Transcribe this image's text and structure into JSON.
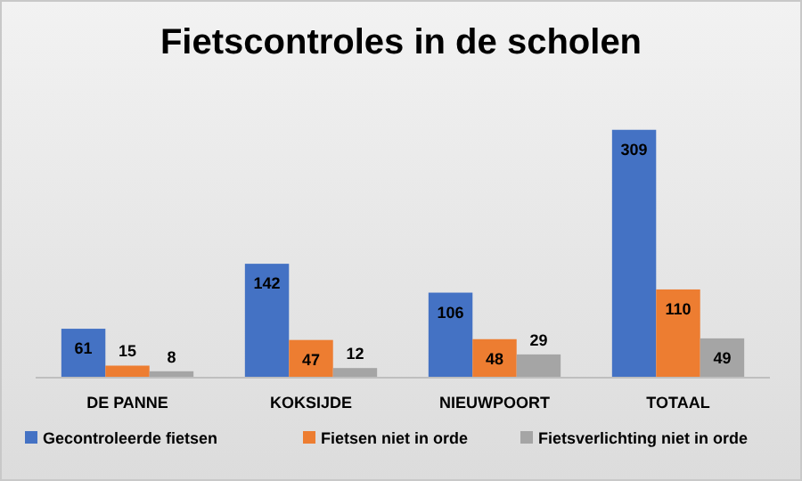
{
  "chart_data": {
    "type": "bar",
    "title": "Fietscontroles in de scholen",
    "categories": [
      "DE PANNE",
      "KOKSIJDE",
      "NIEUWPOORT",
      "TOTAAL"
    ],
    "series": [
      {
        "name": "Gecontroleerde fietsen",
        "color": "#4472c4",
        "values": [
          61,
          142,
          106,
          309
        ]
      },
      {
        "name": "Fietsen niet in orde",
        "color": "#ed7d31",
        "values": [
          15,
          47,
          48,
          110
        ]
      },
      {
        "name": "Fietsverlichting niet in orde",
        "color": "#a5a5a5",
        "values": [
          8,
          12,
          29,
          49
        ]
      }
    ],
    "data_labels": true,
    "legend": "bottom",
    "grid": false
  }
}
